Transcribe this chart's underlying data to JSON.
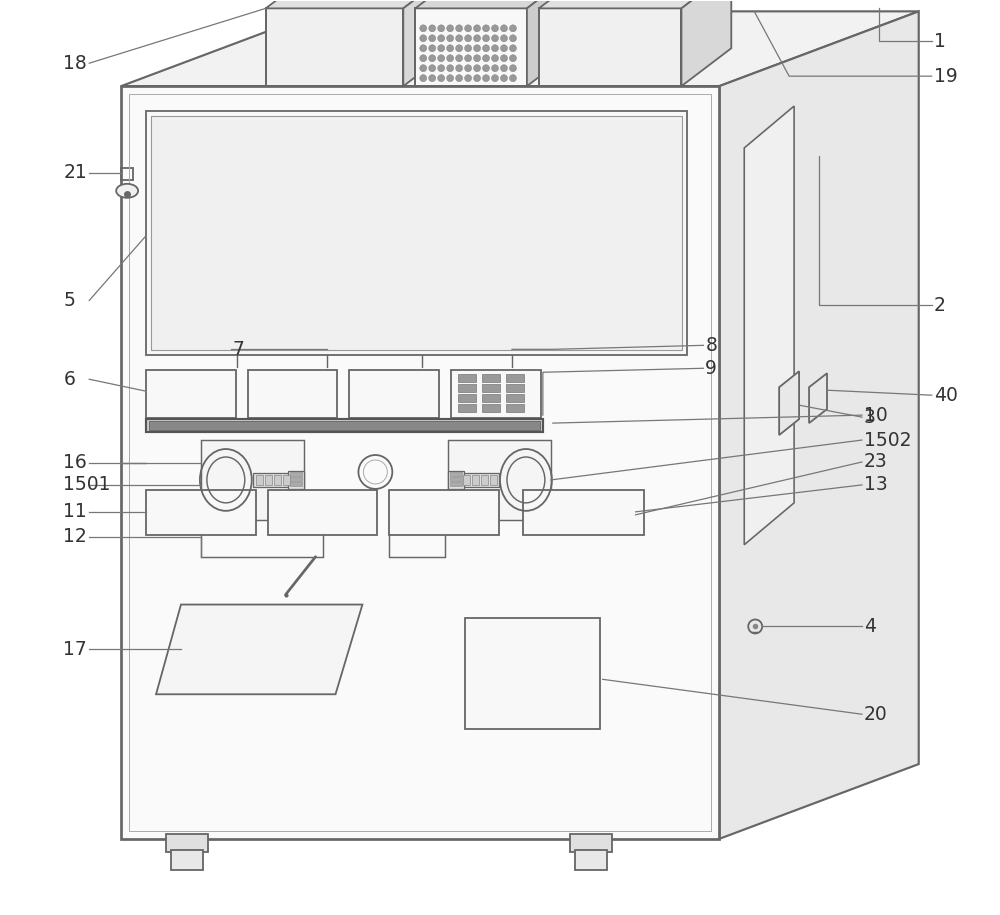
{
  "bg_color": "#ffffff",
  "line_color": "#666666",
  "lw": 1.3,
  "fig_w": 10.0,
  "fig_h": 9.15
}
